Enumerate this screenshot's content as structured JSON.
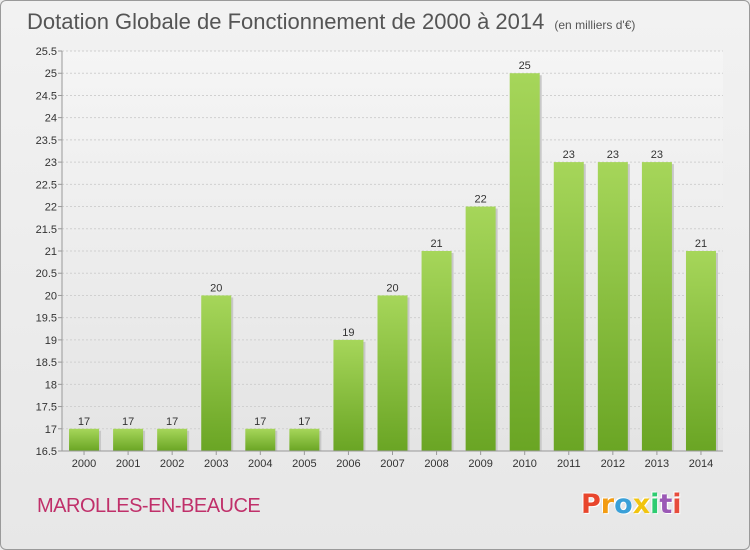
{
  "header": {
    "title": "Dotation Globale de Fonctionnement de 2000 à 2014",
    "unit": "(en milliers d'€)"
  },
  "footer": {
    "commune": "MAROLLES-EN-BEAUCE",
    "logo": "Proxiti",
    "logo_colors": [
      "#e8452c",
      "#f39c12",
      "#3aa0d8",
      "#f1c40f",
      "#2ecc71",
      "#9b59b6",
      "#e74c3c"
    ]
  },
  "colors": {
    "bar_top": "#a6d65a",
    "bar_bottom": "#6aa524",
    "axis": "#999999",
    "grid": "#d0d0d0"
  },
  "chart_data": {
    "type": "bar",
    "title": "Dotation Globale de Fonctionnement de 2000 à 2014",
    "subtitle": "(en milliers d'€)",
    "xlabel": "",
    "ylabel": "",
    "categories": [
      "2000",
      "2001",
      "2002",
      "2003",
      "2004",
      "2005",
      "2006",
      "2007",
      "2008",
      "2009",
      "2010",
      "2011",
      "2012",
      "2013",
      "2014"
    ],
    "values": [
      17,
      17,
      17,
      20,
      17,
      17,
      19,
      20,
      21,
      22,
      25,
      23,
      23,
      23,
      21
    ],
    "value_labels": [
      "17",
      "17",
      "17",
      "20",
      "17",
      "17",
      "19",
      "20",
      "21",
      "22",
      "25",
      "23",
      "23",
      "23",
      "21"
    ],
    "ylim": [
      16.5,
      25.5
    ],
    "yticks": [
      "16.5",
      "17",
      "17.5",
      "18",
      "18.5",
      "19",
      "19.5",
      "20",
      "20.5",
      "21",
      "21.5",
      "22",
      "22.5",
      "23",
      "23.5",
      "24",
      "24.5",
      "25",
      "25.5"
    ],
    "grid": true,
    "legend": "none"
  }
}
